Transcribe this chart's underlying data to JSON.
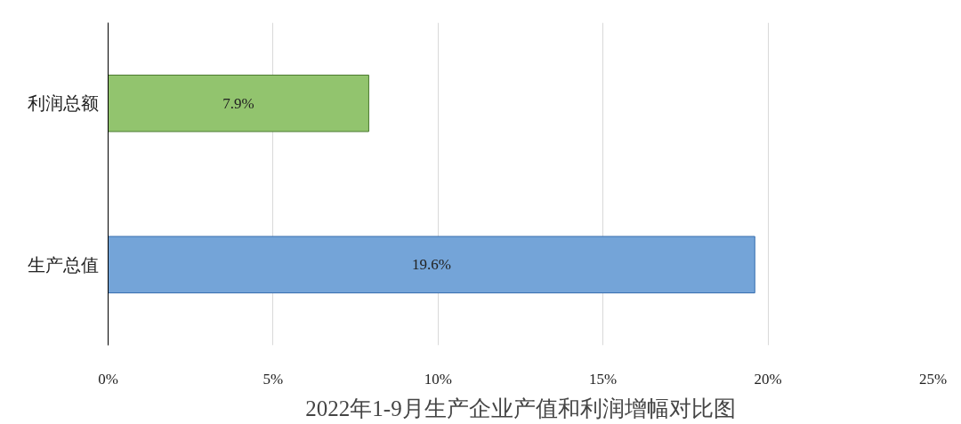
{
  "chart_data": {
    "type": "bar",
    "orientation": "horizontal",
    "title": "2022年1-9月生产企业产值和利润增幅对比图",
    "categories": [
      "利润总额",
      "生产总值"
    ],
    "values": [
      7.9,
      19.6
    ],
    "colors": [
      "#92c46e",
      "#74a4d8"
    ],
    "value_labels": [
      "7.9%",
      "19.6%"
    ],
    "xlim": [
      0,
      25
    ],
    "xticks": [
      {
        "value": 0,
        "label": "0%"
      },
      {
        "value": 5,
        "label": "5%"
      },
      {
        "value": 10,
        "label": "10%"
      },
      {
        "value": 15,
        "label": "15%"
      },
      {
        "value": 20,
        "label": "20%"
      },
      {
        "value": 25,
        "label": "25%"
      }
    ],
    "grid": "x"
  }
}
